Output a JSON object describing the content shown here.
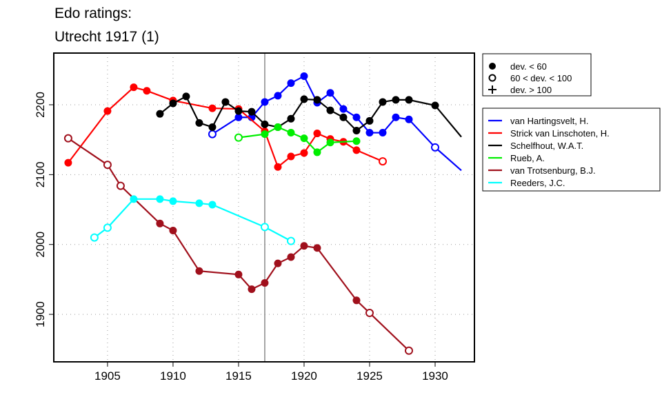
{
  "chart_data": {
    "type": "line",
    "title": [
      "Edo ratings:",
      "Utrecht 1917 (1)"
    ],
    "xlabel": "",
    "ylabel": "",
    "xlim": [
      1900.9,
      1933.0
    ],
    "ylim": [
      1832,
      2274
    ],
    "xticks": [
      1905,
      1910,
      1915,
      1920,
      1925,
      1930
    ],
    "yticks": [
      1900,
      2000,
      2100,
      2200
    ],
    "grid": true,
    "event_year": 1917,
    "marker_legend": [
      {
        "marker": "filled",
        "label": "dev. < 60"
      },
      {
        "marker": "open",
        "label": "60 < dev. < 100"
      },
      {
        "marker": "plus",
        "label": "dev. > 100"
      }
    ],
    "series": [
      {
        "name": "van Hartingsvelt, H.",
        "color": "#0000ff",
        "points": [
          [
            1913,
            2158,
            "o"
          ],
          [
            1915,
            2182,
            "f"
          ],
          [
            1916,
            2182,
            "f"
          ],
          [
            1917,
            2204,
            "f"
          ],
          [
            1918,
            2213,
            "f"
          ],
          [
            1919,
            2231,
            "f"
          ],
          [
            1920,
            2241,
            "f"
          ],
          [
            1921,
            2203,
            "f"
          ],
          [
            1922,
            2217,
            "f"
          ],
          [
            1923,
            2194,
            "f"
          ],
          [
            1924,
            2182,
            "f"
          ],
          [
            1925,
            2160,
            "f"
          ],
          [
            1926,
            2160,
            "f"
          ],
          [
            1927,
            2182,
            "f"
          ],
          [
            1928,
            2179,
            "f"
          ],
          [
            1930,
            2139,
            "o"
          ],
          [
            1932,
            2106,
            "n"
          ]
        ]
      },
      {
        "name": "Strick van Linschoten, H.",
        "color": "#ff0000",
        "points": [
          [
            1902,
            2117,
            "f"
          ],
          [
            1905,
            2191,
            "f"
          ],
          [
            1907,
            2225,
            "f"
          ],
          [
            1908,
            2220,
            "f"
          ],
          [
            1910,
            2206,
            "f"
          ],
          [
            1913,
            2195,
            "f"
          ],
          [
            1915,
            2194,
            "f"
          ],
          [
            1917,
            2162,
            "f"
          ],
          [
            1918,
            2111,
            "f"
          ],
          [
            1919,
            2126,
            "f"
          ],
          [
            1920,
            2131,
            "f"
          ],
          [
            1921,
            2159,
            "f"
          ],
          [
            1922,
            2151,
            "f"
          ],
          [
            1923,
            2147,
            "f"
          ],
          [
            1924,
            2135,
            "f"
          ],
          [
            1926,
            2119,
            "o"
          ]
        ]
      },
      {
        "name": "Schelfhout, W.A.T.",
        "color": "#000000",
        "points": [
          [
            1909,
            2187,
            "f"
          ],
          [
            1910,
            2202,
            "f"
          ],
          [
            1911,
            2212,
            "f"
          ],
          [
            1912,
            2174,
            "f"
          ],
          [
            1913,
            2168,
            "f"
          ],
          [
            1914,
            2204,
            "f"
          ],
          [
            1915,
            2191,
            "f"
          ],
          [
            1916,
            2190,
            "f"
          ],
          [
            1917,
            2172,
            "f"
          ],
          [
            1918,
            2168,
            "f"
          ],
          [
            1919,
            2180,
            "f"
          ],
          [
            1920,
            2208,
            "f"
          ],
          [
            1921,
            2207,
            "f"
          ],
          [
            1922,
            2192,
            "f"
          ],
          [
            1923,
            2182,
            "f"
          ],
          [
            1924,
            2163,
            "f"
          ],
          [
            1925,
            2177,
            "f"
          ],
          [
            1926,
            2204,
            "f"
          ],
          [
            1927,
            2207,
            "f"
          ],
          [
            1928,
            2207,
            "f"
          ],
          [
            1930,
            2199,
            "f"
          ],
          [
            1932,
            2154,
            "n"
          ]
        ]
      },
      {
        "name": "Rueb, A.",
        "color": "#00ee00",
        "points": [
          [
            1915,
            2153,
            "o"
          ],
          [
            1917,
            2158,
            "f"
          ],
          [
            1918,
            2168,
            "f"
          ],
          [
            1919,
            2160,
            "f"
          ],
          [
            1920,
            2152,
            "f"
          ],
          [
            1921,
            2132,
            "f"
          ],
          [
            1922,
            2146,
            "f"
          ],
          [
            1924,
            2148,
            "f"
          ]
        ]
      },
      {
        "name": "van Trotsenburg, B.J.",
        "color": "#a0101c",
        "points": [
          [
            1902,
            2152,
            "o"
          ],
          [
            1905,
            2114,
            "o"
          ],
          [
            1906,
            2084,
            "o"
          ],
          [
            1909,
            2030,
            "f"
          ],
          [
            1910,
            2020,
            "f"
          ],
          [
            1912,
            1962,
            "f"
          ],
          [
            1915,
            1957,
            "f"
          ],
          [
            1916,
            1936,
            "f"
          ],
          [
            1917,
            1945,
            "f"
          ],
          [
            1918,
            1973,
            "f"
          ],
          [
            1919,
            1982,
            "f"
          ],
          [
            1920,
            1998,
            "f"
          ],
          [
            1921,
            1995,
            "f"
          ],
          [
            1924,
            1920,
            "f"
          ],
          [
            1925,
            1902,
            "o"
          ],
          [
            1928,
            1848,
            "o"
          ]
        ]
      },
      {
        "name": "Reeders, J.C.",
        "color": "#00ffff",
        "points": [
          [
            1904,
            2010,
            "o"
          ],
          [
            1905,
            2024,
            "o"
          ],
          [
            1907,
            2065,
            "f"
          ],
          [
            1909,
            2065,
            "f"
          ],
          [
            1910,
            2062,
            "f"
          ],
          [
            1912,
            2059,
            "f"
          ],
          [
            1913,
            2057,
            "f"
          ],
          [
            1917,
            2025,
            "o"
          ],
          [
            1919,
            2005,
            "o"
          ]
        ]
      }
    ]
  }
}
